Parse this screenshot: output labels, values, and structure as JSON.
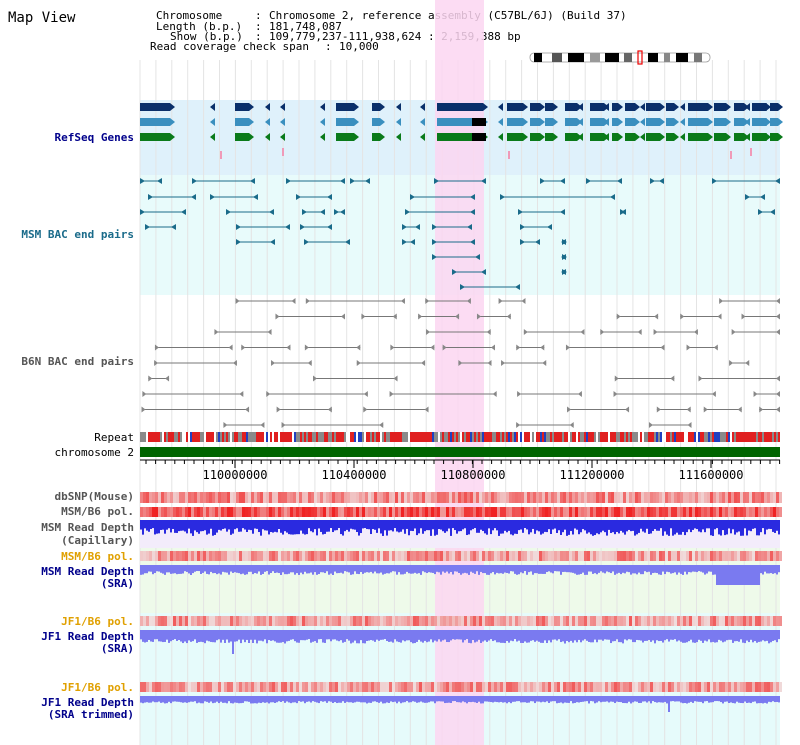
{
  "view_title": "Map View",
  "info": {
    "chromosome_label": "Chromosome",
    "chromosome_value": "Chromosome 2, reference assembly (C57BL/6J) (Build 37)",
    "length_label": "Length (b.p.)",
    "length_value": "181,748,087",
    "show_label": "Show (b.p.)",
    "show_value": "109,779,237-111,938,624 : 2,159,388 bp",
    "coverage_label": "Read coverage check span",
    "coverage_value": "10,000"
  },
  "tracks": {
    "refseq": "RefSeq Genes",
    "msm_bac": "MSM BAC end pairs",
    "b6n_bac": "B6N BAC end pairs",
    "repeat": "Repeat",
    "chromosome": "chromosome 2",
    "dbsnp": "dbSNP(Mouse)",
    "msm_b6_pol_1": "MSM/B6 pol.",
    "msm_read_depth_cap_1": "MSM Read Depth",
    "msm_read_depth_cap_2": "(Capillary)",
    "msm_b6_pol_2": "MSM/B6 pol.",
    "msm_read_depth_sra_1": "MSM Read Depth",
    "msm_read_depth_sra_2": "(SRA)",
    "jf1_b6_pol_1": "JF1/B6 pol.",
    "jf1_read_depth_sra_1": "JF1 Read Depth",
    "jf1_read_depth_sra_2": "(SRA)",
    "jf1_b6_pol_2": "JF1/B6 pol.",
    "jf1_read_depth_trim_1": "JF1 Read Depth",
    "jf1_read_depth_trim_2": "(SRA trimmed)"
  },
  "axis": {
    "ticks": [
      "110000000",
      "110400000",
      "110800000",
      "111200000",
      "111600000"
    ]
  },
  "colors": {
    "refseq_bg": "#dff1fb",
    "bac_bg": "#e8fbfb",
    "highlight": "#fbd6f1",
    "chromosome_bar": "#006400",
    "depth_blue": "#2a2ae0",
    "depth_light": "#7a7af0",
    "pol_red": "#ee3333"
  }
}
